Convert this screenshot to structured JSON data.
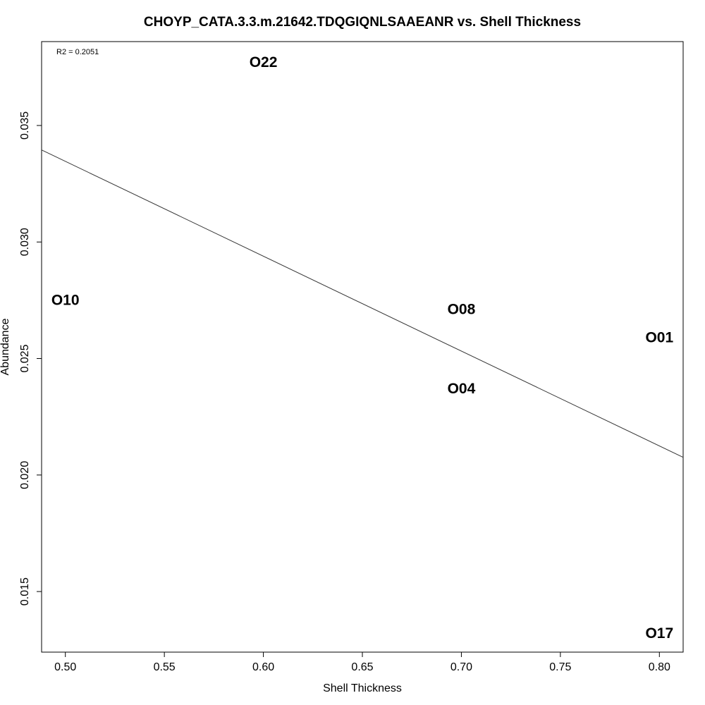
{
  "chart_data": {
    "type": "scatter",
    "title": "CHOYP_CATA.3.3.m.21642.TDQGIQNLSAAEANR vs. Shell Thickness",
    "xlabel": "Shell Thickness",
    "ylabel": "Abundance",
    "xlim": [
      0.488,
      0.812
    ],
    "ylim": [
      0.0124,
      0.0386
    ],
    "xticks": [
      0.5,
      0.55,
      0.6,
      0.65,
      0.7,
      0.75,
      0.8
    ],
    "xtick_labels": [
      "0.50",
      "0.55",
      "0.60",
      "0.65",
      "0.70",
      "0.75",
      "0.80"
    ],
    "yticks": [
      0.015,
      0.02,
      0.025,
      0.03,
      0.035
    ],
    "ytick_labels": [
      "0.015",
      "0.020",
      "0.025",
      "0.030",
      "0.035"
    ],
    "points": [
      {
        "label": "O22",
        "x": 0.6,
        "y": 0.0377
      },
      {
        "label": "O10",
        "x": 0.5,
        "y": 0.0275
      },
      {
        "label": "O08",
        "x": 0.7,
        "y": 0.0271
      },
      {
        "label": "O01",
        "x": 0.8,
        "y": 0.0259
      },
      {
        "label": "O04",
        "x": 0.7,
        "y": 0.0237
      },
      {
        "label": "O17",
        "x": 0.8,
        "y": 0.0132
      }
    ],
    "regression_line": {
      "x": [
        0.488,
        0.812
      ],
      "y": [
        0.03395,
        0.02076
      ]
    },
    "annotation": "R2 = 0.2051",
    "grid": false,
    "legend": "none"
  }
}
